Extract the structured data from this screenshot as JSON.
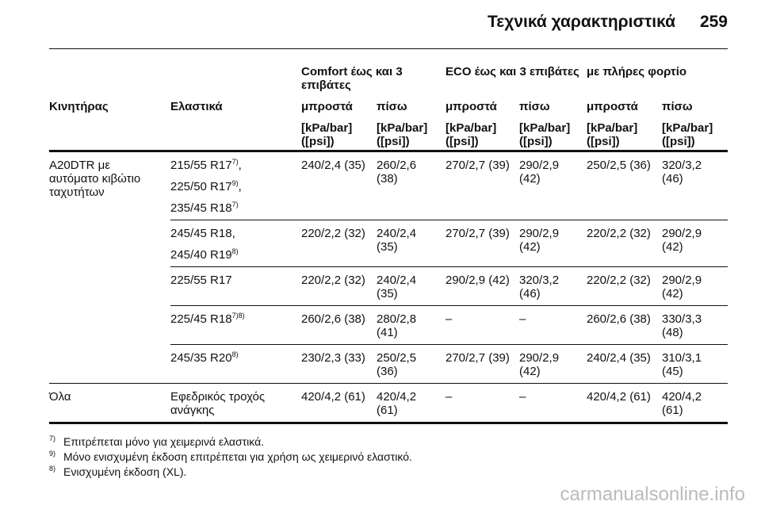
{
  "header": {
    "title": "Τεχνικά χαρακτηριστικά",
    "page": "259"
  },
  "table": {
    "groups": [
      "Comfort έως και 3 επιβάτες",
      "ECO έως και 3 επιβάτες",
      "με πλήρες φορτίο"
    ],
    "columns": [
      "Κινητήρας",
      "Ελαστικά",
      "μπροστά",
      "πίσω",
      "μπροστά",
      "πίσω",
      "μπροστά",
      "πίσω"
    ],
    "units": [
      "[kPa/bar] ([psi])",
      "[kPa/bar] ([psi])",
      "[kPa/bar] ([psi])",
      "[kPa/bar] ([psi])",
      "[kPa/bar] ([psi])",
      "[kPa/bar] ([psi])"
    ],
    "rows": [
      {
        "engine": "A20DTR με αυτόματο κιβώτιο ταχυτήτων",
        "tires": [
          {
            "text": "215/55 R17",
            "sup": "7)",
            "after": ","
          },
          {
            "text": "225/50 R17",
            "sup": "9)",
            "after": ","
          },
          {
            "text": "235/45 R18",
            "sup": "7)"
          }
        ],
        "values": [
          "240/2,4 (35)",
          "260/2,6 (38)",
          "270/2,7 (39)",
          "290/2,9 (42)",
          "250/2,5 (36)",
          "320/3,2 (46)"
        ]
      },
      {
        "tires": [
          {
            "text": "245/45 R18,"
          },
          {
            "text": "245/40 R19",
            "sup": "8)"
          }
        ],
        "values": [
          "220/2,2 (32)",
          "240/2,4 (35)",
          "270/2,7 (39)",
          "290/2,9 (42)",
          "220/2,2 (32)",
          "290/2,9 (42)"
        ]
      },
      {
        "tires": [
          {
            "text": "225/55 R17"
          }
        ],
        "values": [
          "220/2,2 (32)",
          "240/2,4 (35)",
          "290/2,9 (42)",
          "320/3,2 (46)",
          "220/2,2 (32)",
          "290/2,9 (42)"
        ]
      },
      {
        "tires": [
          {
            "text": "225/45 R18",
            "sup": "7)8)"
          }
        ],
        "values": [
          "260/2,6 (38)",
          "280/2,8 (41)",
          "–",
          "–",
          "260/2,6 (38)",
          "330/3,3 (48)"
        ]
      },
      {
        "tires": [
          {
            "text": "245/35 R20",
            "sup": "8)"
          }
        ],
        "values": [
          "230/2,3 (33)",
          "250/2,5 (36)",
          "270/2,7 (39)",
          "290/2,9 (42)",
          "240/2,4 (35)",
          "310/3,1 (45)"
        ]
      },
      {
        "engine": "Όλα",
        "tires": [
          {
            "text": "Εφεδρικός τροχός ανάγκης"
          }
        ],
        "values": [
          "420/4,2 (61)",
          "420/4,2 (61)",
          "–",
          "–",
          "420/4,2 (61)",
          "420/4,2 (61)"
        ]
      }
    ]
  },
  "footnotes": [
    {
      "mark": "7)",
      "text": "Επιτρέπεται μόνο για χειμερινά ελαστικά."
    },
    {
      "mark": "9)",
      "text": "Μόνο ενισχυμένη έκδοση επιτρέπεται για χρήση ως χειμερινό ελαστικό."
    },
    {
      "mark": "8)",
      "text": "Ενισχυμένη έκδοση (XL)."
    }
  ],
  "watermark": "carmanualsonline.info"
}
